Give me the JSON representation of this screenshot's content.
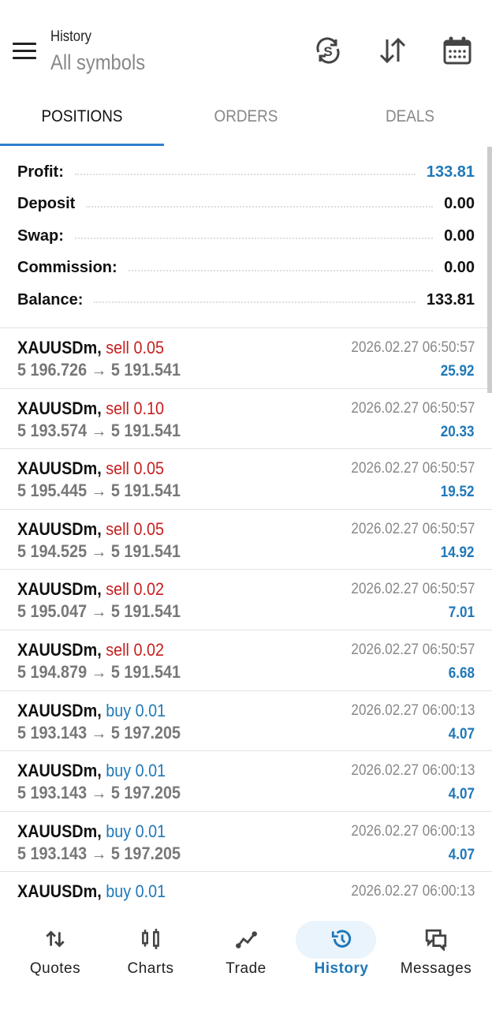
{
  "header": {
    "title": "History",
    "subtitle": "All symbols",
    "icons": [
      "menu-icon",
      "currency-exchange-icon",
      "sort-icon",
      "calendar-icon"
    ]
  },
  "tabs": [
    {
      "label": "POSITIONS",
      "active": true
    },
    {
      "label": "ORDERS"
    },
    {
      "label": "DEALS"
    }
  ],
  "summary": [
    {
      "label": "Profit:",
      "value": "133.81"
    },
    {
      "label": "Deposit",
      "value": "0.00"
    },
    {
      "label": "Swap:",
      "value": "0.00"
    },
    {
      "label": "Commission:",
      "value": "0.00"
    },
    {
      "label": "Balance:",
      "value": "133.81"
    }
  ],
  "trades": [
    {
      "symbol": "XAUUSDm,",
      "side": "sell 0.05",
      "type": "sell",
      "open": "5 196.726",
      "close": "5 191.541",
      "time": "2026.02.27 06:50:57",
      "profit": "25.92"
    },
    {
      "symbol": "XAUUSDm,",
      "side": "sell 0.10",
      "type": "sell",
      "open": "5 193.574",
      "close": "5 191.541",
      "time": "2026.02.27 06:50:57",
      "profit": "20.33"
    },
    {
      "symbol": "XAUUSDm,",
      "side": "sell 0.05",
      "type": "sell",
      "open": "5 195.445",
      "close": "5 191.541",
      "time": "2026.02.27 06:50:57",
      "profit": "19.52"
    },
    {
      "symbol": "XAUUSDm,",
      "side": "sell 0.05",
      "type": "sell",
      "open": "5 194.525",
      "close": "5 191.541",
      "time": "2026.02.27 06:50:57",
      "profit": "14.92"
    },
    {
      "symbol": "XAUUSDm,",
      "side": "sell 0.02",
      "type": "sell",
      "open": "5 195.047",
      "close": "5 191.541",
      "time": "2026.02.27 06:50:57",
      "profit": "7.01"
    },
    {
      "symbol": "XAUUSDm,",
      "side": "sell 0.02",
      "type": "sell",
      "open": "5 194.879",
      "close": "5 191.541",
      "time": "2026.02.27 06:50:57",
      "profit": "6.68"
    },
    {
      "symbol": "XAUUSDm,",
      "side": "buy 0.01",
      "type": "buy",
      "open": "5 193.143",
      "close": "5 197.205",
      "time": "2026.02.27 06:00:13",
      "profit": "4.07"
    },
    {
      "symbol": "XAUUSDm,",
      "side": "buy 0.01",
      "type": "buy",
      "open": "5 193.143",
      "close": "5 197.205",
      "time": "2026.02.27 06:00:13",
      "profit": "4.07"
    },
    {
      "symbol": "XAUUSDm,",
      "side": "buy 0.01",
      "type": "buy",
      "open": "5 193.143",
      "close": "5 197.205",
      "time": "2026.02.27 06:00:13",
      "profit": "4.07"
    },
    {
      "symbol": "XAUUSDm,",
      "side": "buy 0.01",
      "type": "buy",
      "open": "",
      "close": "",
      "time": "2026.02.27 06:00:13",
      "profit": ""
    }
  ],
  "arrow": "→",
  "nav": [
    {
      "label": "Quotes",
      "icon": "quotes-icon"
    },
    {
      "label": "Charts",
      "icon": "charts-icon"
    },
    {
      "label": "Trade",
      "icon": "trade-icon"
    },
    {
      "label": "History",
      "icon": "history-icon",
      "active": true
    },
    {
      "label": "Messages",
      "icon": "messages-icon"
    }
  ],
  "colors": {
    "accent": "#1f78b8",
    "sell": "#c81e1e",
    "buy": "#1f78b8"
  }
}
